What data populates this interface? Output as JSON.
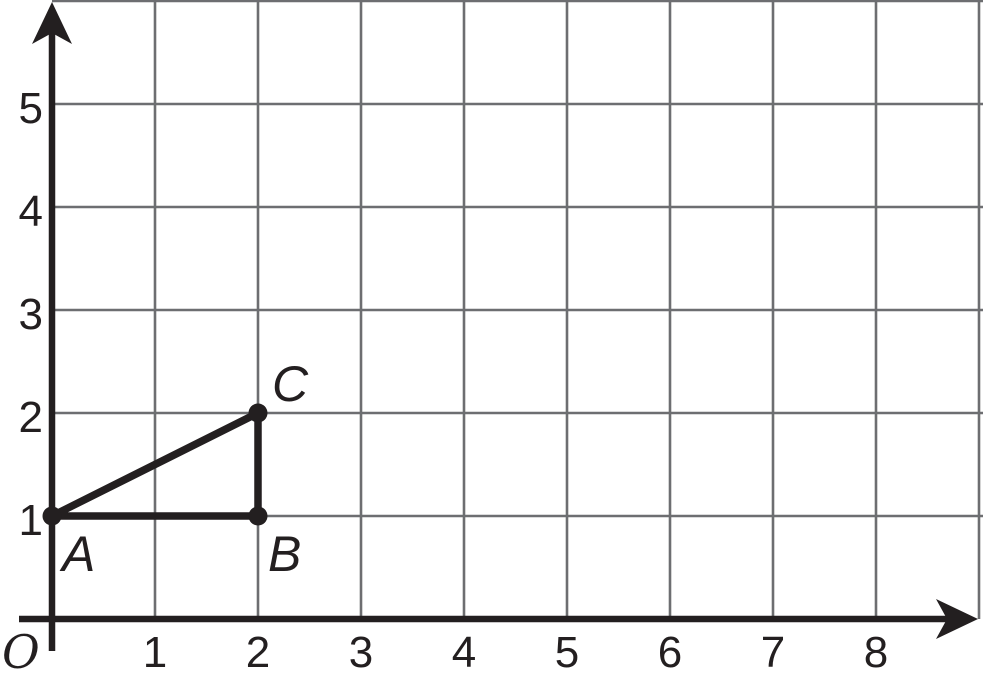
{
  "figure": {
    "background": "#ffffff",
    "axis_color": "#231f20",
    "grid_color": "#6d6e71",
    "text_color": "#231f20",
    "point_color": "#231f20"
  },
  "chart_data": {
    "type": "scatter",
    "title": "",
    "xlabel": "",
    "ylabel": "",
    "xlim": [
      0,
      9.05
    ],
    "ylim": [
      0,
      6.0
    ],
    "x_ticks": [
      1,
      2,
      3,
      4,
      5,
      6,
      7,
      8
    ],
    "y_ticks": [
      1,
      2,
      3,
      4,
      5
    ],
    "grid": true,
    "axis_arrows": true,
    "origin_label": "O",
    "points": [
      {
        "label": "A",
        "x": 0,
        "y": 1,
        "label_pos": "below-right"
      },
      {
        "label": "B",
        "x": 2,
        "y": 1,
        "label_pos": "below-right"
      },
      {
        "label": "C",
        "x": 2,
        "y": 2,
        "label_pos": "above-right"
      }
    ],
    "polygon": [
      "A",
      "B",
      "C"
    ]
  }
}
